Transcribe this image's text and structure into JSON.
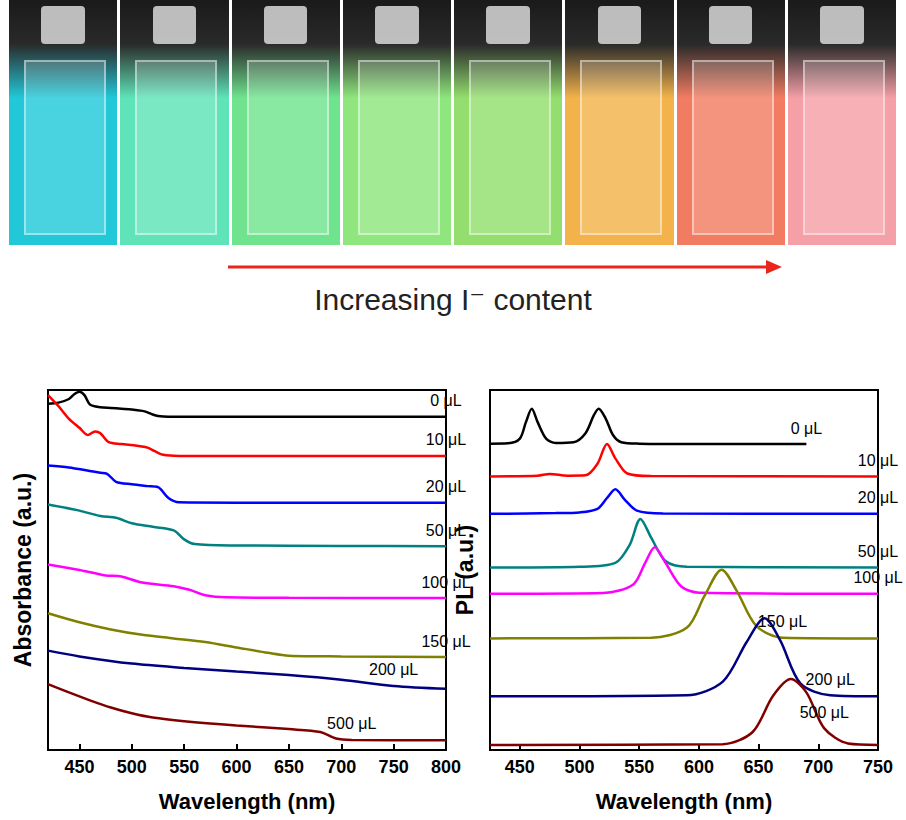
{
  "header": {
    "caption": "Increasing I⁻ content"
  },
  "chart_data": [
    {
      "type": "line",
      "y_label": "Absorbance (a.u.)",
      "x_label": "Wavelength (nm)",
      "xlim": [
        420,
        800
      ],
      "xticks": [
        450,
        500,
        550,
        600,
        650,
        700,
        750,
        800
      ],
      "ylim": [
        0,
        10
      ],
      "yticks": [],
      "tick_labels": "x",
      "grid": false,
      "series": [
        {
          "name": "0 μL",
          "color": "#000000",
          "x": [
            420,
            430,
            440,
            445,
            450,
            455,
            460,
            470,
            480,
            490,
            500,
            510,
            515,
            520,
            525,
            535,
            550,
            600,
            700,
            800
          ],
          "values": [
            9.62,
            9.65,
            9.75,
            9.88,
            9.95,
            9.85,
            9.6,
            9.52,
            9.5,
            9.48,
            9.46,
            9.42,
            9.38,
            9.32,
            9.28,
            9.26,
            9.26,
            9.26,
            9.26,
            9.26
          ]
        },
        {
          "name": "10 μL",
          "color": "#ff0000",
          "x": [
            420,
            430,
            440,
            450,
            458,
            465,
            470,
            478,
            490,
            505,
            515,
            522,
            530,
            545,
            600,
            700,
            800
          ],
          "values": [
            9.86,
            9.55,
            9.2,
            8.95,
            8.75,
            8.85,
            8.8,
            8.55,
            8.5,
            8.45,
            8.4,
            8.3,
            8.2,
            8.17,
            8.17,
            8.17,
            8.17
          ]
        },
        {
          "name": "20 μL",
          "color": "#0000ff",
          "x": [
            420,
            440,
            460,
            470,
            476,
            485,
            500,
            515,
            525,
            535,
            545,
            600,
            700,
            800
          ],
          "values": [
            7.9,
            7.85,
            7.75,
            7.7,
            7.68,
            7.45,
            7.38,
            7.33,
            7.3,
            7.0,
            6.88,
            6.87,
            6.87,
            6.87
          ]
        },
        {
          "name": "50 μL",
          "color": "#008080",
          "x": [
            420,
            450,
            470,
            485,
            500,
            520,
            540,
            550,
            560,
            600,
            700,
            800
          ],
          "values": [
            6.82,
            6.65,
            6.5,
            6.45,
            6.3,
            6.2,
            6.1,
            5.85,
            5.72,
            5.68,
            5.67,
            5.66
          ]
        },
        {
          "name": "100 μL",
          "color": "#ff00ff",
          "x": [
            420,
            450,
            475,
            490,
            510,
            540,
            555,
            570,
            590,
            650,
            800
          ],
          "values": [
            5.15,
            5.0,
            4.85,
            4.82,
            4.65,
            4.55,
            4.45,
            4.3,
            4.24,
            4.23,
            4.22
          ]
        },
        {
          "name": "150 μL",
          "color": "#808000",
          "x": [
            420,
            450,
            480,
            510,
            540,
            570,
            600,
            630,
            650,
            700,
            800
          ],
          "values": [
            3.8,
            3.55,
            3.35,
            3.2,
            3.1,
            3.0,
            2.85,
            2.7,
            2.62,
            2.6,
            2.58
          ]
        },
        {
          "name": "200 μL",
          "color": "#000080",
          "x": [
            420,
            450,
            500,
            550,
            600,
            650,
            700,
            750,
            800
          ],
          "values": [
            2.76,
            2.6,
            2.4,
            2.28,
            2.18,
            2.08,
            1.95,
            1.78,
            1.7
          ]
        },
        {
          "name": "500 μL",
          "color": "#800000",
          "x": [
            420,
            440,
            460,
            480,
            500,
            520,
            550,
            600,
            650,
            680,
            695,
            710,
            800
          ],
          "values": [
            1.83,
            1.6,
            1.38,
            1.18,
            1.02,
            0.9,
            0.8,
            0.68,
            0.58,
            0.5,
            0.32,
            0.28,
            0.27
          ]
        }
      ]
    },
    {
      "type": "line",
      "y_label": "PL (a.u.)",
      "x_label": "Wavelength (nm)",
      "xlim": [
        425,
        750
      ],
      "xticks": [
        450,
        500,
        550,
        600,
        650,
        700,
        750
      ],
      "ylim": [
        0,
        10
      ],
      "yticks": [],
      "tick_labels": "x",
      "grid": false,
      "series": [
        {
          "name": "0 μL",
          "color": "#000000",
          "x": [
            425,
            440,
            450,
            455,
            460,
            465,
            472,
            480,
            495,
            505,
            512,
            516,
            522,
            528,
            535,
            550,
            600,
            690
          ],
          "values": [
            8.51,
            8.52,
            8.65,
            9.1,
            9.48,
            9.1,
            8.65,
            8.53,
            8.55,
            8.8,
            9.3,
            9.48,
            9.2,
            8.75,
            8.55,
            8.51,
            8.5,
            8.5
          ]
        },
        {
          "name": "10 μL",
          "color": "#ff0000",
          "x": [
            425,
            465,
            475,
            490,
            505,
            515,
            523,
            530,
            540,
            560,
            750
          ],
          "values": [
            7.6,
            7.62,
            7.67,
            7.62,
            7.63,
            7.95,
            8.5,
            8.1,
            7.68,
            7.61,
            7.6
          ]
        },
        {
          "name": "20 μL",
          "color": "#0000ff",
          "x": [
            425,
            480,
            500,
            515,
            523,
            530,
            538,
            548,
            570,
            750
          ],
          "values": [
            6.56,
            6.58,
            6.6,
            6.7,
            7.0,
            7.24,
            6.95,
            6.65,
            6.57,
            6.56
          ]
        },
        {
          "name": "50 μL",
          "color": "#008080",
          "x": [
            425,
            500,
            530,
            542,
            551,
            560,
            572,
            590,
            750
          ],
          "values": [
            5.07,
            5.09,
            5.2,
            5.7,
            6.42,
            5.9,
            5.25,
            5.09,
            5.07
          ]
        },
        {
          "name": "100 μL",
          "color": "#ff00ff",
          "x": [
            425,
            520,
            545,
            555,
            563,
            572,
            585,
            600,
            750
          ],
          "values": [
            4.34,
            4.36,
            4.6,
            5.2,
            5.63,
            5.2,
            4.55,
            4.37,
            4.34
          ]
        },
        {
          "name": "150 μL",
          "color": "#808000",
          "x": [
            425,
            560,
            590,
            605,
            619,
            632,
            648,
            670,
            750
          ],
          "values": [
            3.1,
            3.12,
            3.4,
            4.3,
            5.01,
            4.4,
            3.45,
            3.12,
            3.1
          ]
        },
        {
          "name": "200 μL",
          "color": "#000080",
          "x": [
            425,
            590,
            620,
            640,
            655,
            668,
            685,
            710,
            750
          ],
          "values": [
            1.49,
            1.52,
            1.9,
            3.0,
            3.66,
            3.05,
            1.85,
            1.52,
            1.49
          ]
        },
        {
          "name": "500 μL",
          "color": "#800000",
          "x": [
            425,
            620,
            645,
            662,
            677,
            690,
            705,
            725,
            750
          ],
          "values": [
            0.14,
            0.16,
            0.5,
            1.5,
            1.97,
            1.6,
            0.6,
            0.18,
            0.14
          ]
        }
      ]
    }
  ]
}
